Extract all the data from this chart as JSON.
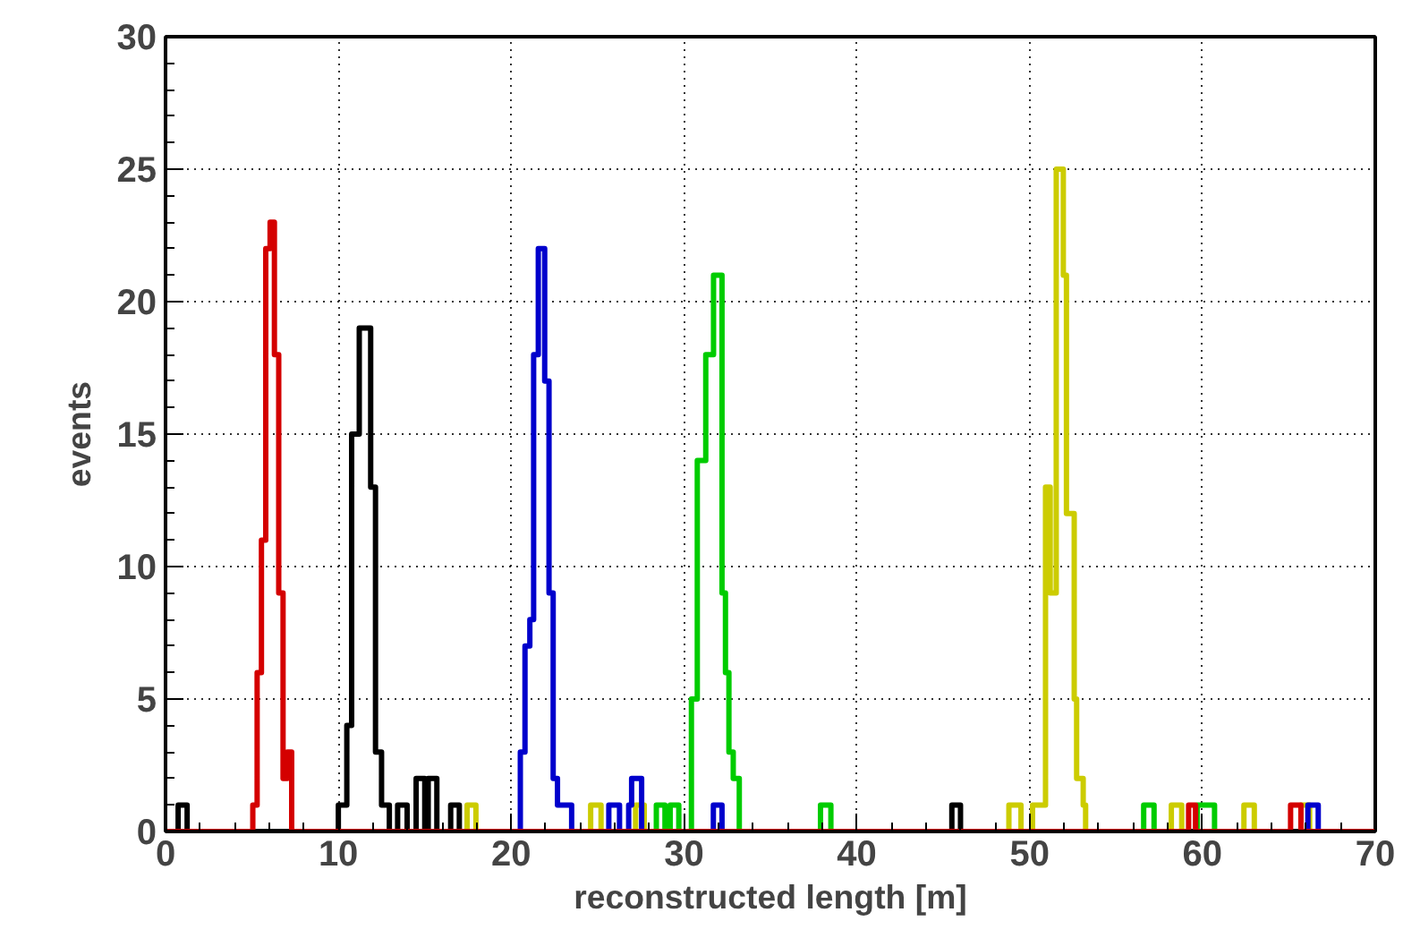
{
  "chart_data": {
    "type": "step",
    "xlabel": "reconstructed length [m]",
    "ylabel": "events",
    "xlim": [
      0,
      70
    ],
    "ylim": [
      0,
      30
    ],
    "xticks": [
      0,
      10,
      20,
      30,
      40,
      50,
      60,
      70
    ],
    "yticks": [
      0,
      5,
      10,
      15,
      20,
      25,
      30
    ],
    "grid": true,
    "series": [
      {
        "color": "#cccc00",
        "x": [
          0,
          17.45,
          17.96,
          24.6,
          25.2,
          27.2,
          27.7,
          48.8,
          49.5,
          50.17,
          50.92,
          51.19,
          51.54,
          51.95,
          52.13,
          52.58,
          52.72,
          53.1,
          53.24,
          58.2,
          58.8,
          62.4,
          63.0,
          65.7,
          66.2,
          70
        ],
        "values": [
          0,
          1,
          0,
          1,
          0,
          1,
          0,
          1,
          0,
          1,
          13,
          9,
          25,
          21,
          12,
          5,
          2,
          1,
          0,
          1,
          0,
          1,
          0,
          1,
          0,
          0
        ]
      },
      {
        "color": "#00cc00",
        "x": [
          0,
          28.4,
          28.9,
          29.2,
          29.7,
          30.43,
          30.77,
          31.26,
          31.71,
          32.2,
          32.4,
          32.6,
          32.85,
          33.2,
          37.9,
          38.5,
          56.6,
          57.2,
          59.7,
          60.7,
          70
        ],
        "values": [
          0,
          1,
          0,
          1,
          0,
          5,
          14,
          18,
          21,
          9,
          6,
          3,
          2,
          0,
          1,
          0,
          1,
          0,
          1,
          0,
          0
        ]
      },
      {
        "color": "#0000cc",
        "x": [
          0,
          20.53,
          20.8,
          21.08,
          21.3,
          21.57,
          21.94,
          22.19,
          22.43,
          22.68,
          23.5,
          25.65,
          26.27,
          26.8,
          26.97,
          27.55,
          31.7,
          32.2,
          66.1,
          66.7,
          70
        ],
        "values": [
          0,
          3,
          7,
          8,
          18,
          22,
          17,
          9,
          2,
          1,
          0,
          1,
          0,
          1,
          2,
          0,
          1,
          0,
          1,
          0,
          0
        ]
      },
      {
        "color": "#000000",
        "x": [
          0,
          0.73,
          1.25,
          10.0,
          10.49,
          10.77,
          11.21,
          11.87,
          12.15,
          12.5,
          12.95,
          13.43,
          13.98,
          14.5,
          15.0,
          15.2,
          15.7,
          16.5,
          17.0,
          45.5,
          46.0,
          70
        ],
        "values": [
          0,
          1,
          0,
          1,
          4,
          15,
          19,
          13,
          3,
          1,
          0,
          1,
          0,
          2,
          0,
          2,
          0,
          1,
          0,
          1,
          0,
          0
        ]
      },
      {
        "color": "#d40000",
        "x": [
          0,
          5.05,
          5.3,
          5.55,
          5.8,
          6.05,
          6.3,
          6.55,
          6.8,
          7.05,
          7.3,
          59.2,
          59.6,
          65.1,
          65.7,
          70
        ],
        "values": [
          0,
          1,
          6,
          11,
          22,
          23,
          18,
          9,
          2,
          3,
          0,
          1,
          0,
          1,
          0,
          0
        ]
      }
    ]
  }
}
